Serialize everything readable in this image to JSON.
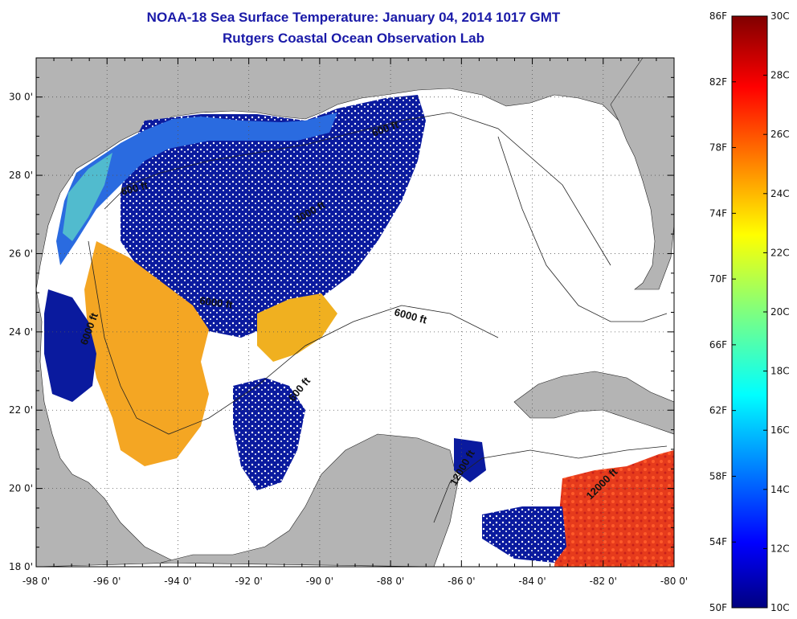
{
  "title": "NOAA-18 Sea Surface Temperature:  January 04, 2014 1017 GMT",
  "subtitle": "Rutgers Coastal Ocean Observation Lab",
  "axes": {
    "x_ticks": [
      "-98 0'",
      "-96 0'",
      "-94 0'",
      "-92 0'",
      "-90 0'",
      "-88 0'",
      "-86 0'",
      "-84 0'",
      "-82 0'",
      "-80 0'"
    ],
    "y_ticks": [
      "30 0'",
      "28 0'",
      "26 0'",
      "24 0'",
      "22 0'",
      "20 0'",
      "18 0'"
    ],
    "lon_range": [
      -98,
      -80
    ],
    "lat_range": [
      18,
      31
    ],
    "grid": true
  },
  "contours": [
    {
      "label": "600 ft"
    },
    {
      "label": "600 ft"
    },
    {
      "label": "3000 ft"
    },
    {
      "label": "6000 ft"
    },
    {
      "label": "6000 ft"
    },
    {
      "label": "6000 ft"
    },
    {
      "label": "600 ft"
    },
    {
      "label": "12000 ft"
    },
    {
      "label": "12000 ft"
    }
  ],
  "colorbar": {
    "f_labels": [
      "86F",
      "82F",
      "78F",
      "74F",
      "70F",
      "66F",
      "62F",
      "58F",
      "54F",
      "50F"
    ],
    "c_labels": [
      "30C",
      "28C",
      "26C",
      "24C",
      "22C",
      "20C",
      "18C",
      "16C",
      "14C",
      "12C",
      "10C"
    ],
    "range_c": [
      10,
      30
    ],
    "range_f": [
      50,
      86
    ]
  },
  "colors": {
    "land": "#b4b4b4",
    "nodata": "#ffffff",
    "title": "#1a1aa8",
    "cold": "#000090",
    "warm": "#f4a623",
    "hot": "#e83a1a"
  }
}
